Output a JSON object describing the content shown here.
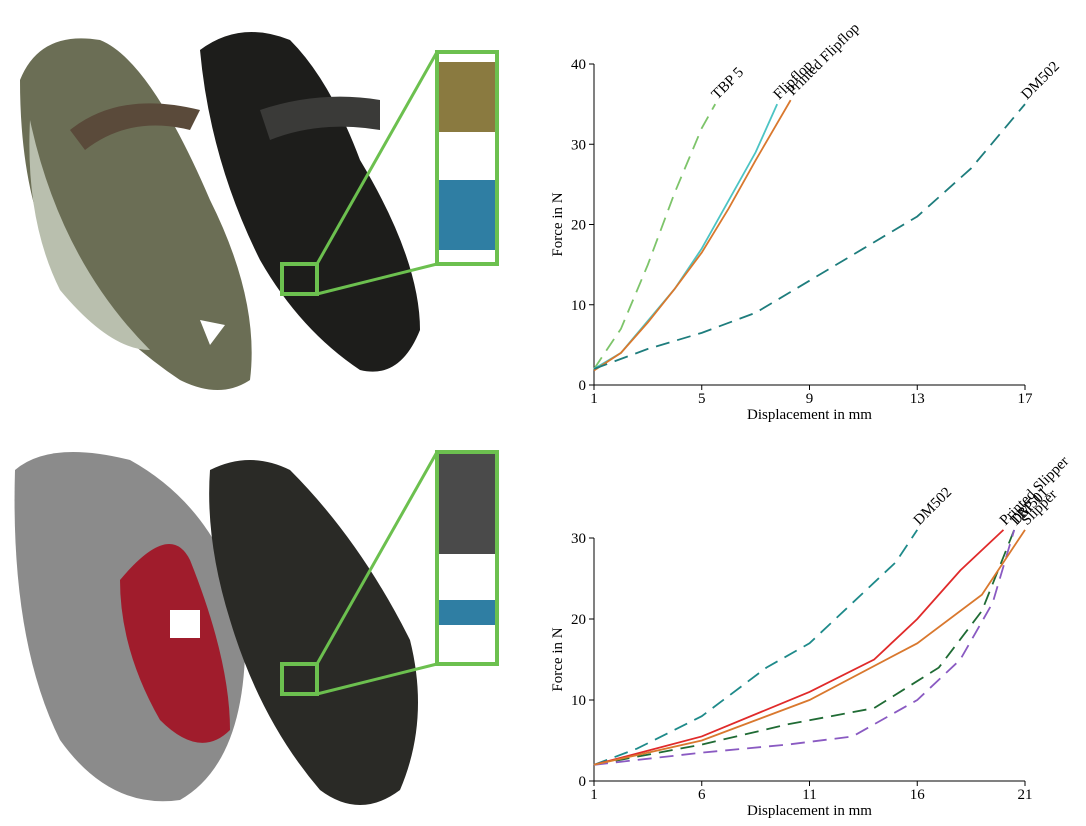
{
  "chart_data": [
    {
      "type": "line",
      "x_label": "Displacement in mm",
      "y_label": "Force in N",
      "xlim": [
        1,
        17
      ],
      "xticks": [
        1,
        5,
        9,
        13,
        17
      ],
      "ylim": [
        0,
        40
      ],
      "yticks": [
        0,
        10,
        20,
        30,
        40
      ],
      "series": [
        {
          "name": "TBP 5",
          "color": "#7dc46a",
          "style": "dashed",
          "x": [
            1,
            2,
            3,
            4,
            5,
            5.5
          ],
          "values": [
            2,
            7,
            15,
            24,
            32,
            35
          ]
        },
        {
          "name": "Flipflop",
          "color": "#4cc4c4",
          "style": "solid",
          "x": [
            1,
            2,
            3,
            4,
            5,
            6,
            7,
            7.8
          ],
          "values": [
            2,
            4,
            8,
            12,
            17,
            23,
            29,
            35
          ]
        },
        {
          "name": "Printed Flipflop",
          "color": "#d9782e",
          "style": "solid",
          "x": [
            1,
            2,
            3,
            4,
            5,
            6,
            7,
            8.3
          ],
          "values": [
            1.8,
            4,
            7.8,
            12,
            16.5,
            22,
            28,
            35.5
          ]
        },
        {
          "name": "DM502",
          "color": "#1e7d7d",
          "style": "dashed",
          "x": [
            1,
            3,
            5,
            7,
            9,
            11,
            13,
            15,
            17
          ],
          "values": [
            2,
            4.5,
            6.5,
            9,
            13,
            17,
            21,
            27,
            35
          ]
        }
      ]
    },
    {
      "type": "line",
      "x_label": "Displacement in mm",
      "y_label": "Force in N",
      "xlim": [
        1,
        21
      ],
      "xticks": [
        1,
        6,
        11,
        16,
        21
      ],
      "ylim": [
        0,
        30
      ],
      "yticks": [
        0,
        10,
        20,
        30
      ],
      "series": [
        {
          "name": "DM502",
          "color": "#1e8a8a",
          "style": "dashed",
          "x": [
            1,
            3,
            6,
            9,
            11,
            13,
            15,
            16
          ],
          "values": [
            2,
            4,
            8,
            14,
            17,
            22,
            27,
            31
          ]
        },
        {
          "name": "Printed Slipper",
          "color": "#e02a2a",
          "style": "solid",
          "x": [
            1,
            6,
            11,
            14,
            16,
            18,
            20
          ],
          "values": [
            2,
            5.5,
            11,
            15,
            20,
            26,
            31
          ]
        },
        {
          "name": "DM501",
          "color": "#1f6b34",
          "style": "dashed",
          "x": [
            1,
            6,
            10,
            14,
            17,
            19,
            20.5
          ],
          "values": [
            2,
            4.5,
            7,
            9,
            14,
            21,
            31
          ]
        },
        {
          "name": "TBP 1",
          "color": "#8a5ac2",
          "style": "dashed",
          "x": [
            1,
            6,
            10,
            13,
            16,
            18,
            19.5,
            20.5
          ],
          "values": [
            2,
            3.5,
            4.5,
            5.5,
            10,
            15,
            22,
            31
          ]
        },
        {
          "name": "Slipper",
          "color": "#d9782e",
          "style": "solid",
          "x": [
            1,
            6,
            11,
            16,
            19,
            21
          ],
          "values": [
            2,
            5,
            10,
            17,
            23,
            31
          ]
        }
      ]
    }
  ]
}
